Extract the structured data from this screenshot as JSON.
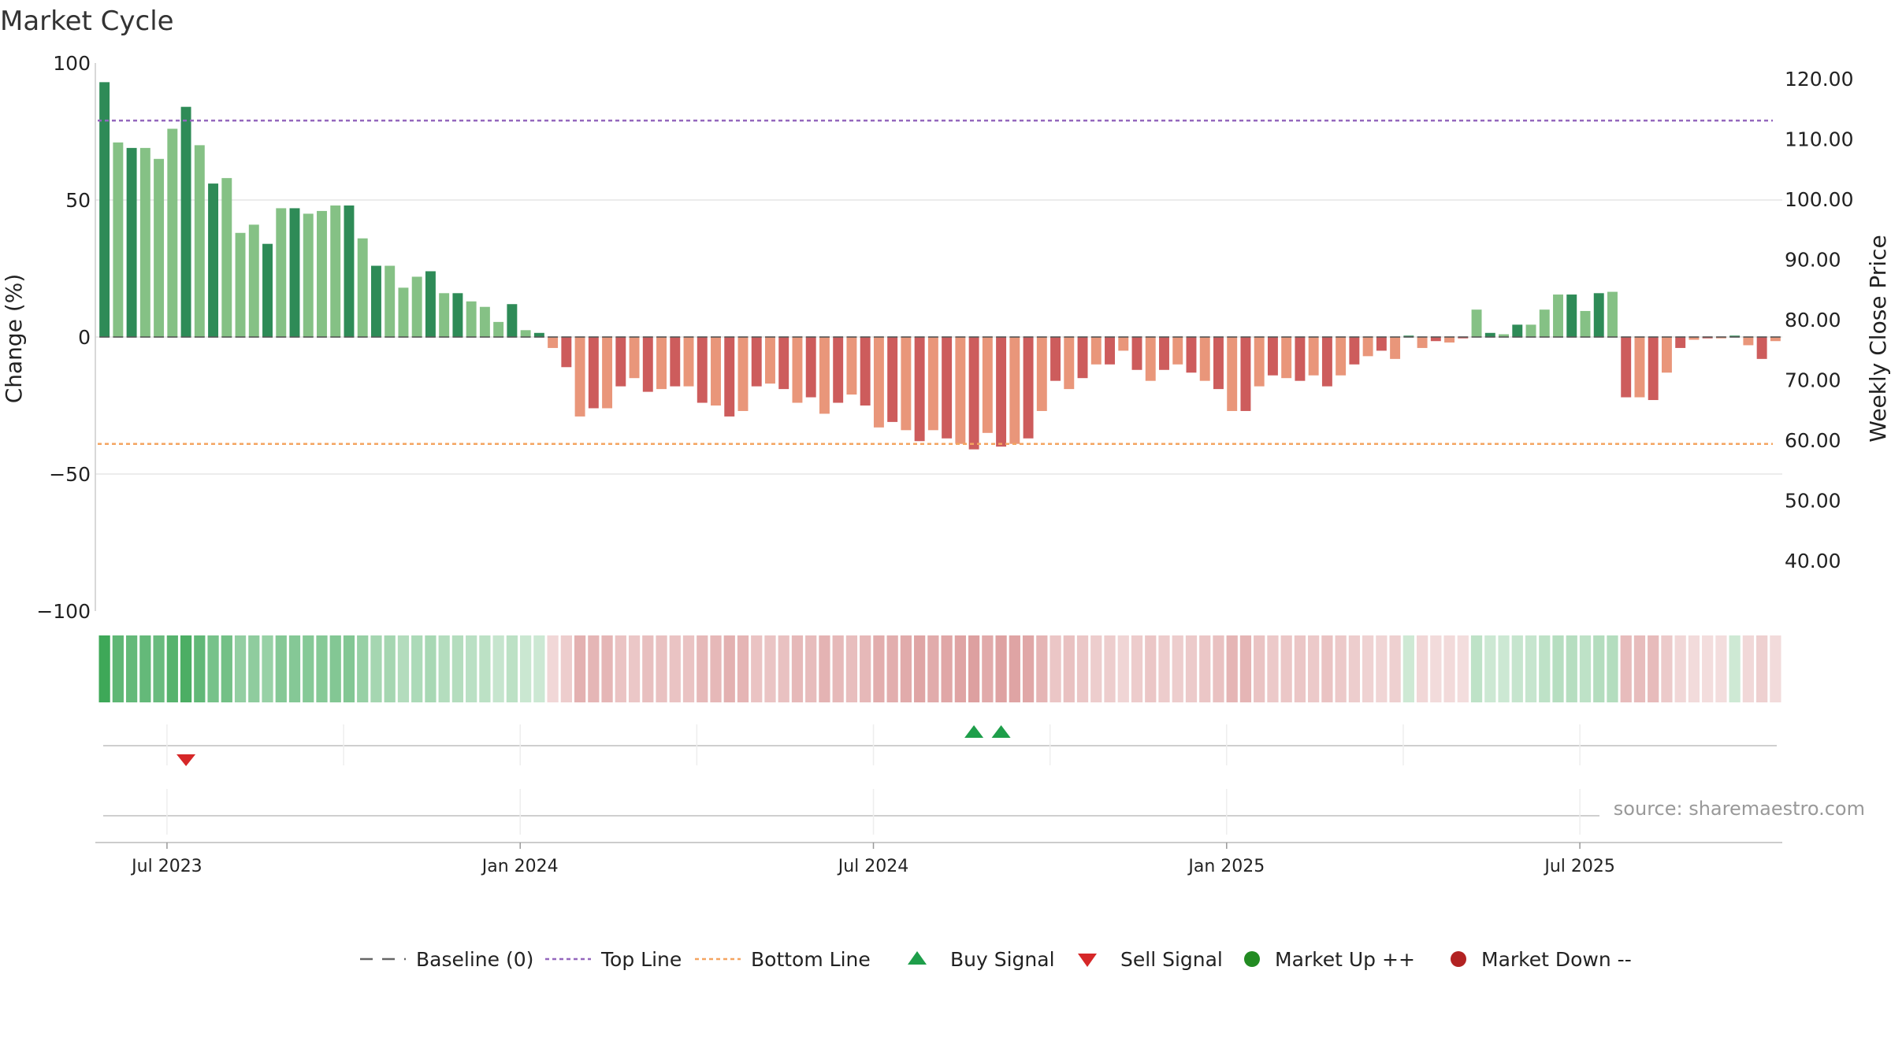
{
  "chart_data": {
    "type": "bar",
    "title": "Market Cycle",
    "ylabel_left": "Change (%)",
    "ylabel_right": "Weekly Close Price",
    "ylim_left": [
      -100,
      100
    ],
    "yticks_left": [
      "100",
      "50",
      "0",
      "−50",
      "−100"
    ],
    "ylim_right": [
      30,
      122
    ],
    "yticks_right": [
      "120.00",
      "110.00",
      "100.00",
      "90.00",
      "80.00",
      "70.00",
      "60.00",
      "50.00",
      "40.00"
    ],
    "x_labels": [
      "Jul 2023",
      "Jan 2024",
      "Jul 2024",
      "Jan 2025",
      "Jul 2025"
    ],
    "top_line": 79,
    "bottom_line": -39,
    "baseline": 0,
    "values": [
      93,
      71,
      69,
      69,
      65,
      76,
      84,
      70,
      56,
      58,
      38,
      41,
      34,
      47,
      47,
      45,
      46,
      48,
      48,
      36,
      26,
      26,
      18,
      22,
      24,
      16,
      16,
      13,
      11,
      5.5,
      12,
      2.5,
      1.5,
      -4,
      -11,
      -29,
      -26,
      -26,
      -18,
      -15,
      -20,
      -19,
      -18,
      -18,
      -24,
      -25,
      -29,
      -27,
      -18,
      -17,
      -19,
      -24,
      -22,
      -28,
      -24,
      -21,
      -25,
      -33,
      -31,
      -34,
      -38,
      -34,
      -37,
      -39,
      -41,
      -35,
      -40,
      -39,
      -37,
      -27,
      -16,
      -19,
      -15,
      -10,
      -10,
      -5,
      -12,
      -16,
      -12,
      -10,
      -13,
      -16,
      -19,
      -27,
      -27,
      -18,
      -14,
      -15,
      -16,
      -14,
      -18,
      -14,
      -10,
      -7,
      -5,
      -8,
      0.5,
      -4,
      -1.5,
      -2,
      -0.5,
      10,
      1.5,
      1,
      4.5,
      4.5,
      10,
      15.5,
      15.5,
      9.5,
      16,
      16.5,
      -22,
      -22,
      -23,
      -13,
      -4,
      -1,
      -0.5,
      -0.5,
      0.5,
      -3,
      -8,
      -1.5
    ],
    "legend": [
      {
        "label": "Baseline (0)",
        "symbol": "dash",
        "color": "#666666"
      },
      {
        "label": "Top Line",
        "symbol": "dotted",
        "color": "#9467bd"
      },
      {
        "label": "Bottom Line",
        "symbol": "dotted",
        "color": "#f4a460"
      },
      {
        "label": "Buy Signal",
        "symbol": "triangle-up",
        "color": "#1e9e4a"
      },
      {
        "label": "Sell Signal",
        "symbol": "triangle-down",
        "color": "#d62728"
      },
      {
        "label": "Market Up ++",
        "symbol": "circle",
        "color": "#228b22"
      },
      {
        "label": "Market Down --",
        "symbol": "circle",
        "color": "#b22222"
      }
    ],
    "buy_signal_indices": [
      64,
      66
    ],
    "sell_signal_indices": [
      6
    ],
    "source": "source: sharemaestro.com",
    "colors": {
      "strong_up": "#2e8b57",
      "weak_up": "#85c185",
      "strong_down": "#cd5c5c",
      "weak_down": "#e9967a",
      "top_line": "#9467bd",
      "bottom_line": "#f4a460",
      "buy": "#1e9e4a",
      "sell": "#d62728"
    }
  }
}
